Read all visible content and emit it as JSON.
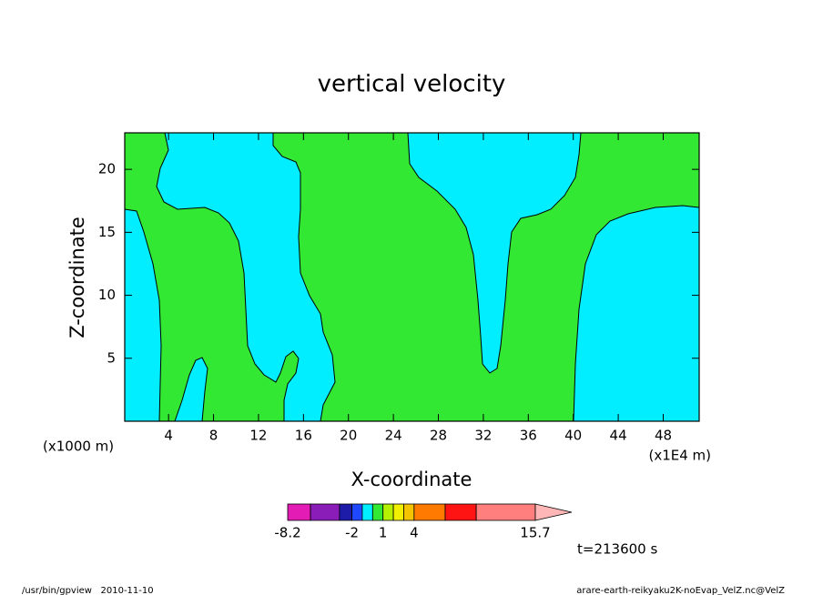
{
  "chart_data": {
    "type": "contour",
    "title": "vertical velocity",
    "xlabel": "X-coordinate",
    "ylabel": "Z-coordinate",
    "x_unit_left": "(x1000 m)",
    "x_unit_right": "(x1E4 m)",
    "xlim": [
      0.1,
      51.2
    ],
    "ylim": [
      0,
      22.9
    ],
    "xticks": [
      4,
      8,
      12,
      16,
      20,
      24,
      28,
      32,
      36,
      40,
      44,
      48
    ],
    "yticks": [
      5,
      10,
      15,
      20
    ],
    "colorbar": {
      "levels": [
        -8.2,
        -6,
        -3.2,
        -2,
        -1,
        0,
        1,
        2,
        3,
        4,
        7,
        10,
        15.7
      ],
      "colors": [
        "#e21cb4",
        "#8a1cb8",
        "#1c1ca8",
        "#1f48ff",
        "#00eeff",
        "#33e833",
        "#b4f000",
        "#f0f000",
        "#f5c400",
        "#ff7a00",
        "#ff1414",
        "#ff7f7f"
      ],
      "extend_color": "#ffb6b6",
      "ticks": [
        -8.2,
        -2,
        1,
        4,
        15.7
      ]
    },
    "time_label": "t=213600 s",
    "footer_left": "/usr/bin/gpview   2010-11-10",
    "footer_right": "arare-earth-reikyaku2K-noEvap_VelZ.nc@VelZ"
  }
}
